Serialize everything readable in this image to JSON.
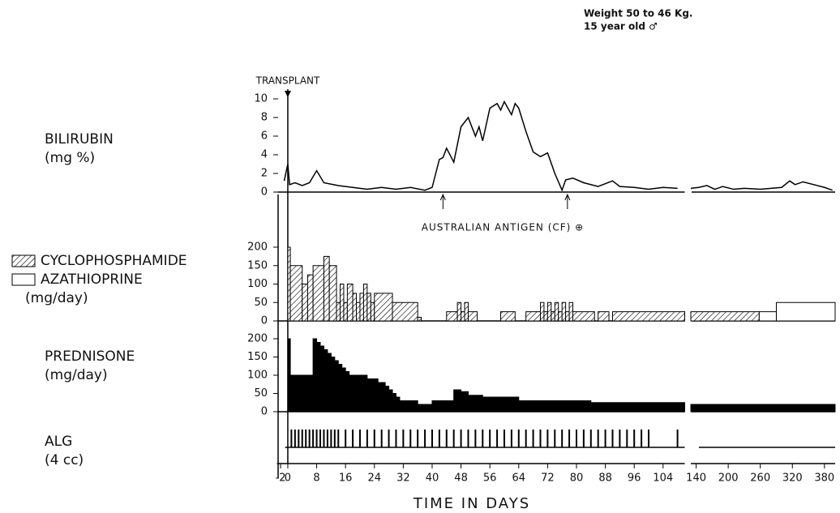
{
  "header": {
    "lines": [
      "Weight  50 to 46 Kg.",
      "15 year old ♂"
    ]
  },
  "x_axis": {
    "label": "TIME IN DAYS",
    "segments": [
      {
        "xlim": [
          -3,
          110
        ],
        "xticks": [
          -2,
          0,
          8,
          16,
          24,
          32,
          40,
          48,
          56,
          64,
          72,
          80,
          88,
          96,
          104
        ]
      },
      {
        "xlim": [
          130,
          400
        ],
        "xticks": [
          140,
          200,
          260,
          320,
          380
        ]
      }
    ]
  },
  "transplant": {
    "text": "TRANSPLANT",
    "x": 0
  },
  "chart_data": [
    {
      "type": "line",
      "title": "BILIRUBIN",
      "subtitle": "(mg %)",
      "color": "#000000",
      "x": [
        -1,
        0,
        0.5,
        2,
        4,
        6,
        8,
        10,
        14,
        18,
        22,
        26,
        30,
        34,
        38,
        40,
        42,
        43,
        44,
        46,
        48,
        50,
        52,
        53,
        54,
        56,
        58,
        59,
        60,
        62,
        63,
        64,
        66,
        68,
        70,
        72,
        74,
        76,
        77,
        79,
        82,
        86,
        90,
        92,
        96,
        100,
        104,
        108,
        120,
        130,
        145,
        160,
        175,
        190,
        210,
        230,
        260,
        300,
        315,
        325,
        340,
        360,
        380,
        395
      ],
      "values": [
        1.2,
        3,
        0.8,
        1,
        0.7,
        1,
        2.3,
        1,
        0.7,
        0.5,
        0.3,
        0.5,
        0.3,
        0.5,
        0.2,
        0.5,
        3.5,
        3.7,
        4.7,
        3.2,
        7,
        8,
        6,
        7,
        5.5,
        9,
        9.5,
        8.8,
        9.7,
        8.3,
        9.5,
        9,
        6.5,
        4.3,
        3.8,
        4.2,
        2,
        0.2,
        1.3,
        1.5,
        1,
        0.6,
        1.2,
        0.6,
        0.5,
        0.3,
        0.5,
        0.4,
        null,
        0.4,
        0.5,
        0.7,
        0.3,
        0.6,
        0.3,
        0.4,
        0.3,
        0.5,
        1.2,
        0.8,
        1.1,
        0.8,
        0.5,
        0.2
      ],
      "ylim": [
        0,
        10
      ],
      "yticks": [
        0,
        2,
        4,
        6,
        8,
        10
      ],
      "annotation": {
        "text": "AUSTRALIAN  ANTIGEN  (CF) ⊕",
        "x": [
          43,
          77.5
        ]
      }
    },
    {
      "type": "step",
      "ylabel": "(mg/day)",
      "ylim": [
        0,
        200
      ],
      "yticks": [
        0,
        50,
        100,
        150,
        200
      ],
      "series": [
        {
          "name": "CYCLOPHOSPHAMIDE",
          "color": "#000000",
          "pattern": "hatch",
          "starts": [
            0,
            0.7,
            4,
            5.5,
            7,
            10,
            11.5,
            13.5,
            14.5,
            15.5,
            16.5,
            18,
            19,
            20,
            21,
            22,
            23,
            24,
            29,
            36,
            44,
            47,
            48,
            49,
            50,
            59,
            66,
            70,
            71,
            72,
            73,
            74,
            75,
            76,
            77,
            78,
            79,
            86,
            90,
            130
          ],
          "ends": [
            0.7,
            4,
            5.5,
            7,
            10,
            11.5,
            13.5,
            14.5,
            15.5,
            16.5,
            18,
            19,
            20,
            21,
            22,
            23,
            24,
            29,
            36,
            37,
            47,
            48,
            49,
            50,
            52.5,
            63,
            70,
            71,
            72,
            73,
            74,
            75,
            76,
            77,
            78,
            79,
            85,
            89,
            110,
            258
          ],
          "values": [
            200,
            150,
            100,
            125,
            150,
            175,
            150,
            50,
            100,
            50,
            100,
            75,
            50,
            75,
            100,
            75,
            50,
            75,
            50,
            10,
            25,
            50,
            25,
            50,
            25,
            25,
            25,
            50,
            25,
            50,
            25,
            50,
            25,
            50,
            25,
            50,
            25,
            25,
            25,
            25
          ]
        },
        {
          "name": "AZATHIOPRINE",
          "color": "#ffffff",
          "starts": [
            258,
            290
          ],
          "ends": [
            290,
            400
          ],
          "values": [
            25,
            50
          ]
        }
      ]
    },
    {
      "type": "step",
      "title": "PREDNISONE",
      "ylabel": "(mg/day)",
      "ylim": [
        0,
        200
      ],
      "yticks": [
        0,
        50,
        100,
        150,
        200
      ],
      "series": [
        {
          "color": "#000000",
          "starts": [
            0,
            0.7,
            7,
            8,
            9,
            10,
            11,
            12,
            13,
            14,
            15,
            16,
            17,
            22,
            25,
            27,
            28,
            29,
            30,
            31,
            36,
            40,
            46,
            48,
            50,
            54,
            64,
            84,
            130
          ],
          "ends": [
            0.7,
            7,
            8,
            9,
            10,
            11,
            12,
            13,
            14,
            15,
            16,
            17,
            22,
            25,
            27,
            28,
            29,
            30,
            31,
            36,
            40,
            46,
            48,
            50,
            54,
            64,
            84,
            110,
            400
          ],
          "values": [
            200,
            100,
            200,
            190,
            180,
            170,
            160,
            150,
            140,
            130,
            120,
            110,
            100,
            90,
            80,
            70,
            60,
            50,
            40,
            30,
            20,
            30,
            60,
            55,
            45,
            40,
            30,
            25,
            20
          ]
        }
      ]
    },
    {
      "type": "event",
      "title": "ALG",
      "subtitle": "(4 cc)",
      "color": "#000000",
      "x": [
        1,
        2,
        3,
        4,
        5,
        6,
        7,
        8,
        9,
        10,
        11,
        12,
        13,
        14,
        16,
        18,
        20,
        22,
        24,
        26,
        28,
        30,
        32,
        34,
        36,
        38,
        40,
        42,
        44,
        46,
        48,
        50,
        52,
        54,
        56,
        58,
        60,
        62,
        64,
        66,
        68,
        70,
        72,
        74,
        76,
        78,
        80,
        82,
        84,
        86,
        88,
        90,
        92,
        94,
        96,
        98,
        100,
        108
      ]
    }
  ]
}
